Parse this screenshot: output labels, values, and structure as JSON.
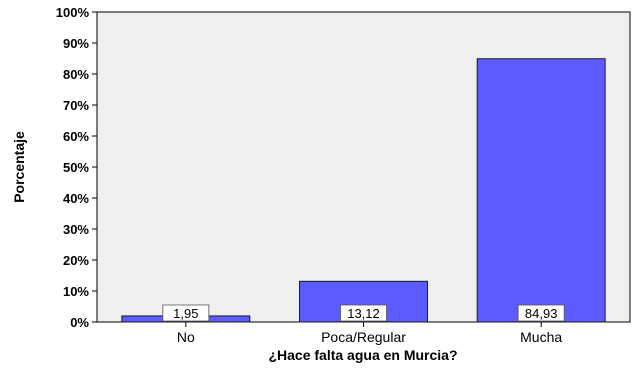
{
  "chart_data": {
    "type": "bar",
    "categories": [
      "No",
      "Poca/Regular",
      "Mucha"
    ],
    "values": [
      1.95,
      13.12,
      84.93
    ],
    "value_labels": [
      "1,95",
      "13,12",
      "84,93"
    ],
    "xlabel": "¿Hace falta agua en Murcia?",
    "ylabel": "Porcentaje",
    "ylim": [
      0,
      100
    ],
    "yticks": [
      "0%",
      "10%",
      "20%",
      "30%",
      "40%",
      "50%",
      "60%",
      "70%",
      "80%",
      "90%",
      "100%"
    ],
    "grid": false,
    "legend": "none",
    "colors": {
      "bar_fill": "#5b5bff",
      "bar_stroke": "#1a1a1a",
      "plot_background": "#efefef",
      "label_box": "#ffffff"
    }
  }
}
